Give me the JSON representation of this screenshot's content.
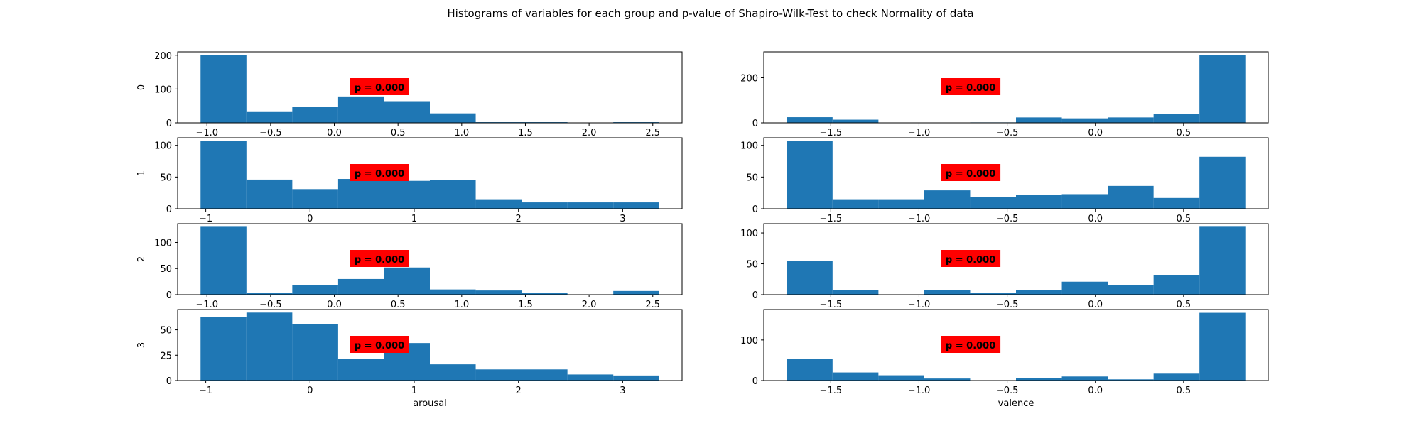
{
  "figure": {
    "title": "Histograms of variables for each group and p-value of Shapiro-Wilk-Test to check Normality of data"
  },
  "colors": {
    "bar": "#1f77b4",
    "pvalue_box": "#ff0000",
    "axis": "#000000",
    "background": "#ffffff"
  },
  "chart_data": [
    {
      "type": "bar",
      "group": "0",
      "variable": "arousal",
      "bins": [
        [
          -1.05,
          -0.69,
          200
        ],
        [
          -0.69,
          -0.33,
          32
        ],
        [
          -0.33,
          0.03,
          48
        ],
        [
          0.03,
          0.39,
          78
        ],
        [
          0.39,
          0.75,
          64
        ],
        [
          0.75,
          1.11,
          28
        ],
        [
          1.11,
          1.47,
          2
        ],
        [
          1.47,
          1.83,
          2
        ],
        [
          1.83,
          2.19,
          0
        ],
        [
          2.19,
          2.55,
          2
        ]
      ],
      "xticks": [
        -1.0,
        -0.5,
        0.0,
        0.5,
        1.0,
        1.5,
        2.0,
        2.5
      ],
      "xtick_labels": [
        "−1.0",
        "−0.5",
        "0.0",
        "0.5",
        "1.0",
        "1.5",
        "2.0",
        "2.5"
      ],
      "yticks": [
        0,
        100,
        200
      ],
      "ytick_labels": [
        "0",
        "100",
        "200"
      ],
      "xlim": [
        -1.23,
        2.73
      ],
      "ylim": [
        0,
        210
      ],
      "ylabel": "0",
      "xlabel": "",
      "annotation": "p = 0.000"
    },
    {
      "type": "bar",
      "group": "0",
      "variable": "valence",
      "bins": [
        [
          -1.75,
          -1.49,
          25
        ],
        [
          -1.49,
          -1.23,
          14
        ],
        [
          -1.23,
          -0.97,
          0
        ],
        [
          -0.97,
          -0.71,
          0
        ],
        [
          -0.71,
          -0.45,
          2
        ],
        [
          -0.45,
          -0.19,
          24
        ],
        [
          -0.19,
          0.07,
          20
        ],
        [
          0.07,
          0.33,
          24
        ],
        [
          0.33,
          0.59,
          38
        ],
        [
          0.59,
          0.85,
          300
        ]
      ],
      "xticks": [
        -1.5,
        -1.0,
        -0.5,
        0.0,
        0.5
      ],
      "xtick_labels": [
        "−1.5",
        "−1.0",
        "−0.5",
        "0.0",
        "0.5"
      ],
      "yticks": [
        0,
        200
      ],
      "ytick_labels": [
        "0",
        "200"
      ],
      "xlim": [
        -1.88,
        0.98
      ],
      "ylim": [
        0,
        315
      ],
      "ylabel": "",
      "xlabel": "",
      "annotation": "p = 0.000"
    },
    {
      "type": "bar",
      "group": "1",
      "variable": "arousal",
      "bins": [
        [
          -1.05,
          -0.61,
          107
        ],
        [
          -0.61,
          -0.17,
          46
        ],
        [
          -0.17,
          0.27,
          31
        ],
        [
          0.27,
          0.71,
          47
        ],
        [
          0.71,
          1.15,
          44
        ],
        [
          1.15,
          1.59,
          45
        ],
        [
          1.59,
          2.03,
          15
        ],
        [
          2.03,
          2.47,
          10
        ],
        [
          2.47,
          2.91,
          10
        ],
        [
          2.91,
          3.35,
          10
        ]
      ],
      "xticks": [
        -1,
        0,
        1,
        2,
        3
      ],
      "xtick_labels": [
        "−1",
        "0",
        "1",
        "2",
        "3"
      ],
      "yticks": [
        0,
        50,
        100
      ],
      "ytick_labels": [
        "0",
        "50",
        "100"
      ],
      "xlim": [
        -1.27,
        3.57
      ],
      "ylim": [
        0,
        112
      ],
      "ylabel": "1",
      "xlabel": "",
      "annotation": "p = 0.000"
    },
    {
      "type": "bar",
      "group": "1",
      "variable": "valence",
      "bins": [
        [
          -1.75,
          -1.49,
          107
        ],
        [
          -1.49,
          -1.23,
          15
        ],
        [
          -1.23,
          -0.97,
          15
        ],
        [
          -0.97,
          -0.71,
          29
        ],
        [
          -0.71,
          -0.45,
          19
        ],
        [
          -0.45,
          -0.19,
          22
        ],
        [
          -0.19,
          0.07,
          23
        ],
        [
          0.07,
          0.33,
          36
        ],
        [
          0.33,
          0.59,
          17
        ],
        [
          0.59,
          0.85,
          82
        ]
      ],
      "xticks": [
        -1.5,
        -1.0,
        -0.5,
        0.0,
        0.5
      ],
      "xtick_labels": [
        "−1.5",
        "−1.0",
        "−0.5",
        "0.0",
        "0.5"
      ],
      "yticks": [
        0,
        50,
        100
      ],
      "ytick_labels": [
        "0",
        "50",
        "100"
      ],
      "xlim": [
        -1.88,
        0.98
      ],
      "ylim": [
        0,
        112
      ],
      "ylabel": "",
      "xlabel": "",
      "annotation": "p = 0.000"
    },
    {
      "type": "bar",
      "group": "2",
      "variable": "arousal",
      "bins": [
        [
          -1.05,
          -0.69,
          130
        ],
        [
          -0.69,
          -0.33,
          3
        ],
        [
          -0.33,
          0.03,
          19
        ],
        [
          0.03,
          0.39,
          30
        ],
        [
          0.39,
          0.75,
          52
        ],
        [
          0.75,
          1.11,
          10
        ],
        [
          1.11,
          1.47,
          8
        ],
        [
          1.47,
          1.83,
          3
        ],
        [
          1.83,
          2.19,
          0
        ],
        [
          2.19,
          2.55,
          7
        ]
      ],
      "xticks": [
        -1.0,
        -0.5,
        0.0,
        0.5,
        1.0,
        1.5,
        2.0,
        2.5
      ],
      "xtick_labels": [
        "−1.0",
        "−0.5",
        "0.0",
        "0.5",
        "1.0",
        "1.5",
        "2.0",
        "2.5"
      ],
      "yticks": [
        0,
        50,
        100
      ],
      "ytick_labels": [
        "0",
        "50",
        "100"
      ],
      "xlim": [
        -1.23,
        2.73
      ],
      "ylim": [
        0,
        136
      ],
      "ylabel": "2",
      "xlabel": "",
      "annotation": "p = 0.000"
    },
    {
      "type": "bar",
      "group": "2",
      "variable": "valence",
      "bins": [
        [
          -1.75,
          -1.49,
          55
        ],
        [
          -1.49,
          -1.23,
          7
        ],
        [
          -1.23,
          -0.97,
          0
        ],
        [
          -0.97,
          -0.71,
          8
        ],
        [
          -0.71,
          -0.45,
          3
        ],
        [
          -0.45,
          -0.19,
          8
        ],
        [
          -0.19,
          0.07,
          21
        ],
        [
          0.07,
          0.33,
          15
        ],
        [
          0.33,
          0.59,
          32
        ],
        [
          0.59,
          0.85,
          110
        ]
      ],
      "xticks": [
        -1.5,
        -1.0,
        -0.5,
        0.0,
        0.5
      ],
      "xtick_labels": [
        "−1.5",
        "−1.0",
        "−0.5",
        "0.0",
        "0.5"
      ],
      "yticks": [
        0,
        50,
        100
      ],
      "ytick_labels": [
        "0",
        "50",
        "100"
      ],
      "xlim": [
        -1.88,
        0.98
      ],
      "ylim": [
        0,
        115
      ],
      "ylabel": "",
      "xlabel": "",
      "annotation": "p = 0.000"
    },
    {
      "type": "bar",
      "group": "3",
      "variable": "arousal",
      "bins": [
        [
          -1.05,
          -0.61,
          63
        ],
        [
          -0.61,
          -0.17,
          67
        ],
        [
          -0.17,
          0.27,
          56
        ],
        [
          0.27,
          0.71,
          21
        ],
        [
          0.71,
          1.15,
          37
        ],
        [
          1.15,
          1.59,
          16
        ],
        [
          1.59,
          2.03,
          11
        ],
        [
          2.03,
          2.47,
          11
        ],
        [
          2.47,
          2.91,
          6
        ],
        [
          2.91,
          3.35,
          5
        ]
      ],
      "xticks": [
        -1,
        0,
        1,
        2,
        3
      ],
      "xtick_labels": [
        "−1",
        "0",
        "1",
        "2",
        "3"
      ],
      "yticks": [
        0,
        25,
        50
      ],
      "ytick_labels": [
        "0",
        "25",
        "50"
      ],
      "xlim": [
        -1.27,
        3.57
      ],
      "ylim": [
        0,
        70
      ],
      "ylabel": "3",
      "xlabel": "arousal",
      "annotation": "p = 0.000"
    },
    {
      "type": "bar",
      "group": "3",
      "variable": "valence",
      "bins": [
        [
          -1.75,
          -1.49,
          53
        ],
        [
          -1.49,
          -1.23,
          20
        ],
        [
          -1.23,
          -0.97,
          13
        ],
        [
          -0.97,
          -0.71,
          5
        ],
        [
          -0.71,
          -0.45,
          0
        ],
        [
          -0.45,
          -0.19,
          7
        ],
        [
          -0.19,
          0.07,
          10
        ],
        [
          0.07,
          0.33,
          3
        ],
        [
          0.33,
          0.59,
          17
        ],
        [
          0.59,
          0.85,
          167
        ]
      ],
      "xticks": [
        -1.5,
        -1.0,
        -0.5,
        0.0,
        0.5
      ],
      "xtick_labels": [
        "−1.5",
        "−1.0",
        "−0.5",
        "0.0",
        "0.5"
      ],
      "yticks": [
        0,
        100
      ],
      "ytick_labels": [
        "0",
        "100"
      ],
      "xlim": [
        -1.88,
        0.98
      ],
      "ylim": [
        0,
        175
      ],
      "ylabel": "",
      "xlabel": "valence",
      "annotation": "p = 0.000"
    }
  ]
}
